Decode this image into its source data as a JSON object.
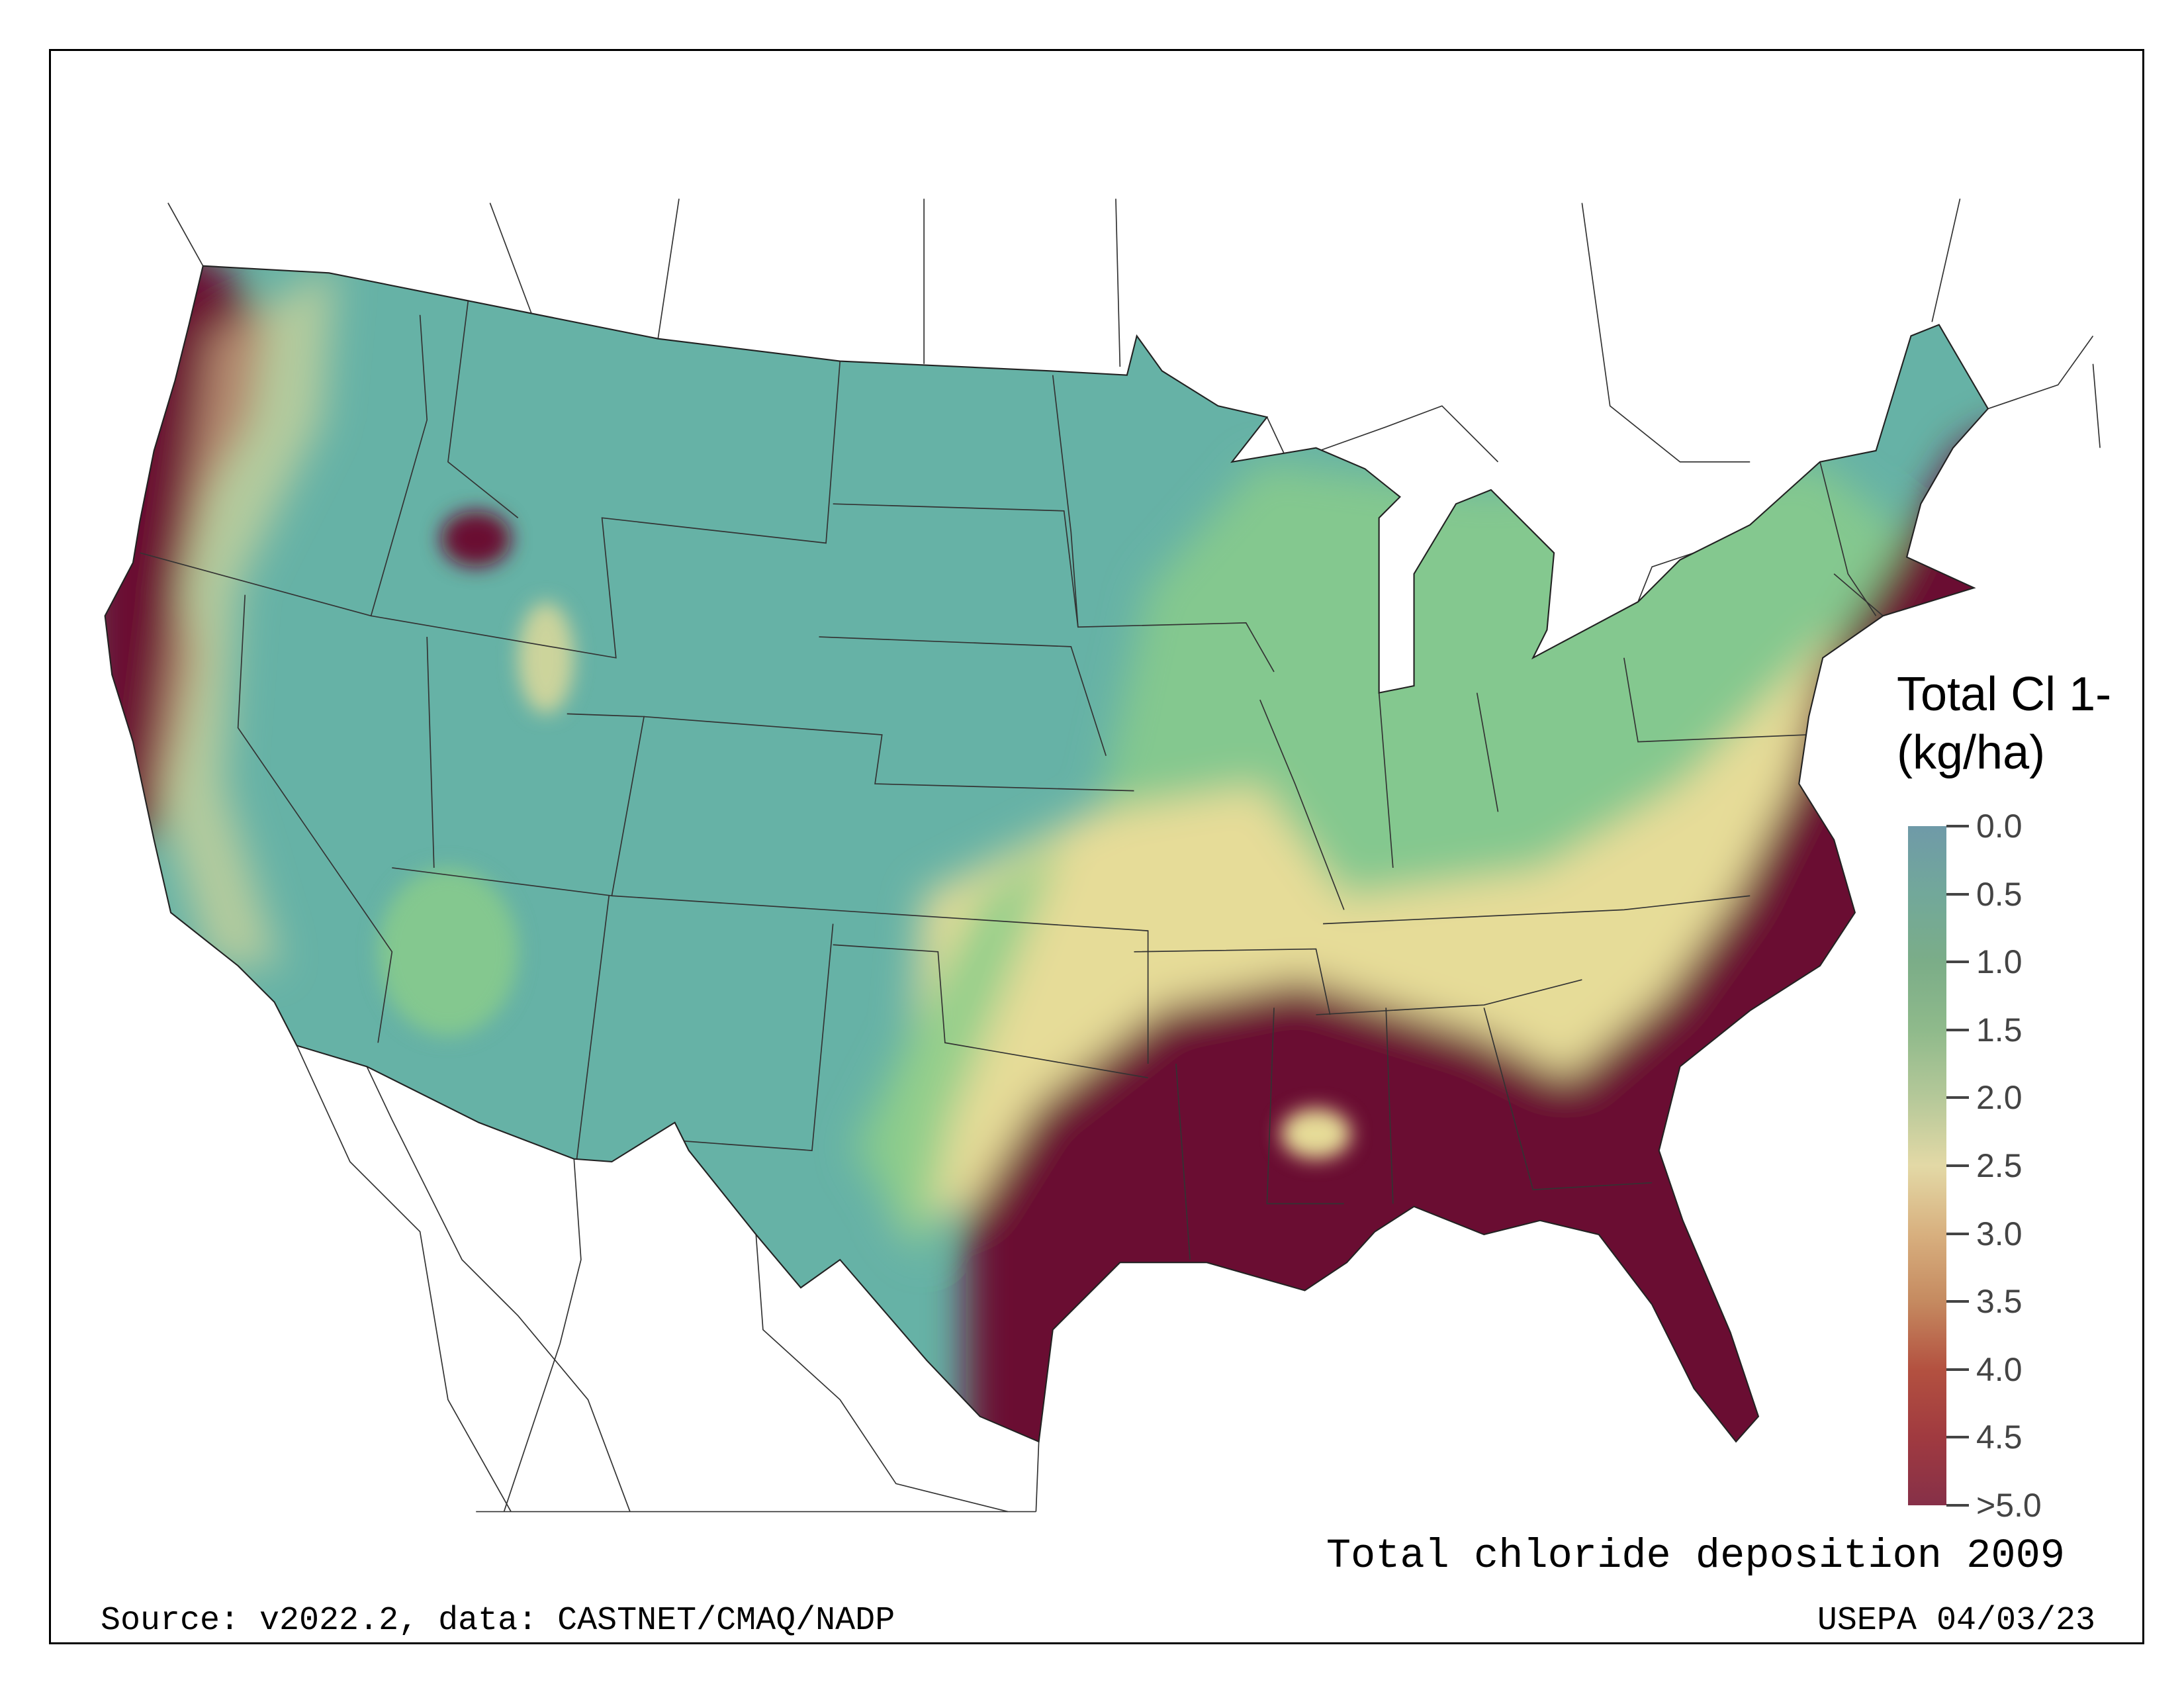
{
  "chart_data": {
    "type": "heatmap",
    "subtype": "choropleth-raster-map",
    "region": "Contiguous United States",
    "title": "Total chloride deposition 2009",
    "legend": {
      "title_line1": "Total Cl 1-",
      "title_line2": "(kg/ha)",
      "ticks": [
        "0.0",
        "0.5",
        "1.0",
        "1.5",
        "2.0",
        "2.5",
        "3.0",
        "3.5",
        "4.0",
        "4.5",
        ">5.0"
      ],
      "tick_values": [
        0,
        0.5,
        1.0,
        1.5,
        2.0,
        2.5,
        3.0,
        3.5,
        4.0,
        4.5,
        5.0
      ],
      "range": [
        0,
        5
      ],
      "placement": "right"
    },
    "colors": {
      "low": "#66b2a6",
      "mid_low": "#8ccd8a",
      "mid": "#e6dc98",
      "high": "#6a0a30"
    },
    "pattern": {
      "highest": [
        "Gulf Coast",
        "Florida",
        "Southeast Atlantic coast",
        "Northeast coast",
        "Pacific Northwest coast",
        "Northern California coast"
      ],
      "lowest": [
        "Great Plains",
        "Interior West",
        "Southwest"
      ]
    }
  },
  "footer": {
    "source": "Source: v2022.2, data: CASTNET/CMAQ/NADP",
    "credit": "USEPA 04/03/23"
  }
}
